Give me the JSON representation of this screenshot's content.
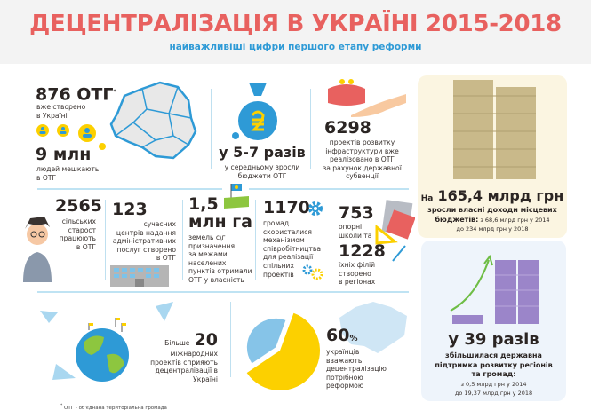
{
  "header": {
    "title": "ДЕЦЕНТРАЛІЗАЦІЯ В УКРАЇНІ 2015-2018",
    "subtitle": "найважливіші цифри першого етапу реформи"
  },
  "colors": {
    "title": "#e8615f",
    "accent": "#2e9ad6",
    "yellow": "#fcd000",
    "panel_cream": "#fbf5e1",
    "panel_blue": "#eef4fb",
    "money": "#9b85c9"
  },
  "stats": {
    "otg": {
      "value": "876 ОТГ",
      "mark": "*",
      "text1": "вже створено",
      "text2": "в Україні"
    },
    "people": {
      "value": "9 млн",
      "text1": "людей мешкають",
      "text2": "в ОТГ"
    },
    "budgets": {
      "value": "у 5-7 разів",
      "text1": "у середньому зросли",
      "text2": "бюджети ОТГ"
    },
    "projects": {
      "value": "6298",
      "text": [
        "проектів розвитку",
        "інфраструктури вже",
        "реалізовано в ОТГ",
        "за рахунок державної",
        "субвенції"
      ]
    },
    "starosta": {
      "value": "2565",
      "text": [
        "сільських",
        "старост",
        "працюють",
        "в ОТГ"
      ]
    },
    "cnap": {
      "value": "123",
      "text": [
        "сучасних",
        "центрів надання",
        "адміністративних",
        "послуг створено",
        "в ОТГ"
      ]
    },
    "land": {
      "value1": "1,5",
      "value2": "млн га",
      "text": [
        "земель с\\г",
        "призначення",
        "за межами",
        "населених",
        "пунктів отримали",
        "ОТГ у власність"
      ]
    },
    "coop": {
      "value": "1170",
      "text": [
        "громад",
        "скористалися",
        "механізмом",
        "співробітництва",
        "для реалізації",
        "спільних",
        "проектів"
      ]
    },
    "schools": {
      "value1": "753",
      "text1": [
        "опорні",
        "школи та"
      ],
      "value2": "1228",
      "text2": [
        "їхніх філій",
        "створено",
        "в регіонах"
      ]
    },
    "intl": {
      "prefix": "Більше",
      "value": "20",
      "text": [
        "міжнародних",
        "проектів сприяють",
        "децентралізації в",
        "Україні"
      ]
    },
    "survey": {
      "value": "60",
      "unit": "%",
      "percent": 60,
      "text": [
        "українців",
        "вважають",
        "децентралізацію",
        "потрібною",
        "реформою"
      ]
    },
    "revenue": {
      "prefix": "На",
      "value": "165,4 млрд грн",
      "text1": "зросли власні доходи місцевих",
      "text2_bold": "бюджетів:",
      "text2": " з 68,6 млрд грн у 2014",
      "text3": "до 234 млрд грн у 2018"
    },
    "support": {
      "value": "у 39 разів",
      "text": [
        "збільшилася державна",
        "підтримка розвитку регіонів",
        "та громад:"
      ],
      "detail": [
        "з 0,5 млрд грн у 2014",
        "до 19,37 млрд грн у 2018"
      ]
    }
  },
  "footnote": {
    "mark": "*",
    "text": "ОТГ - об'єднана територіальна громада"
  }
}
